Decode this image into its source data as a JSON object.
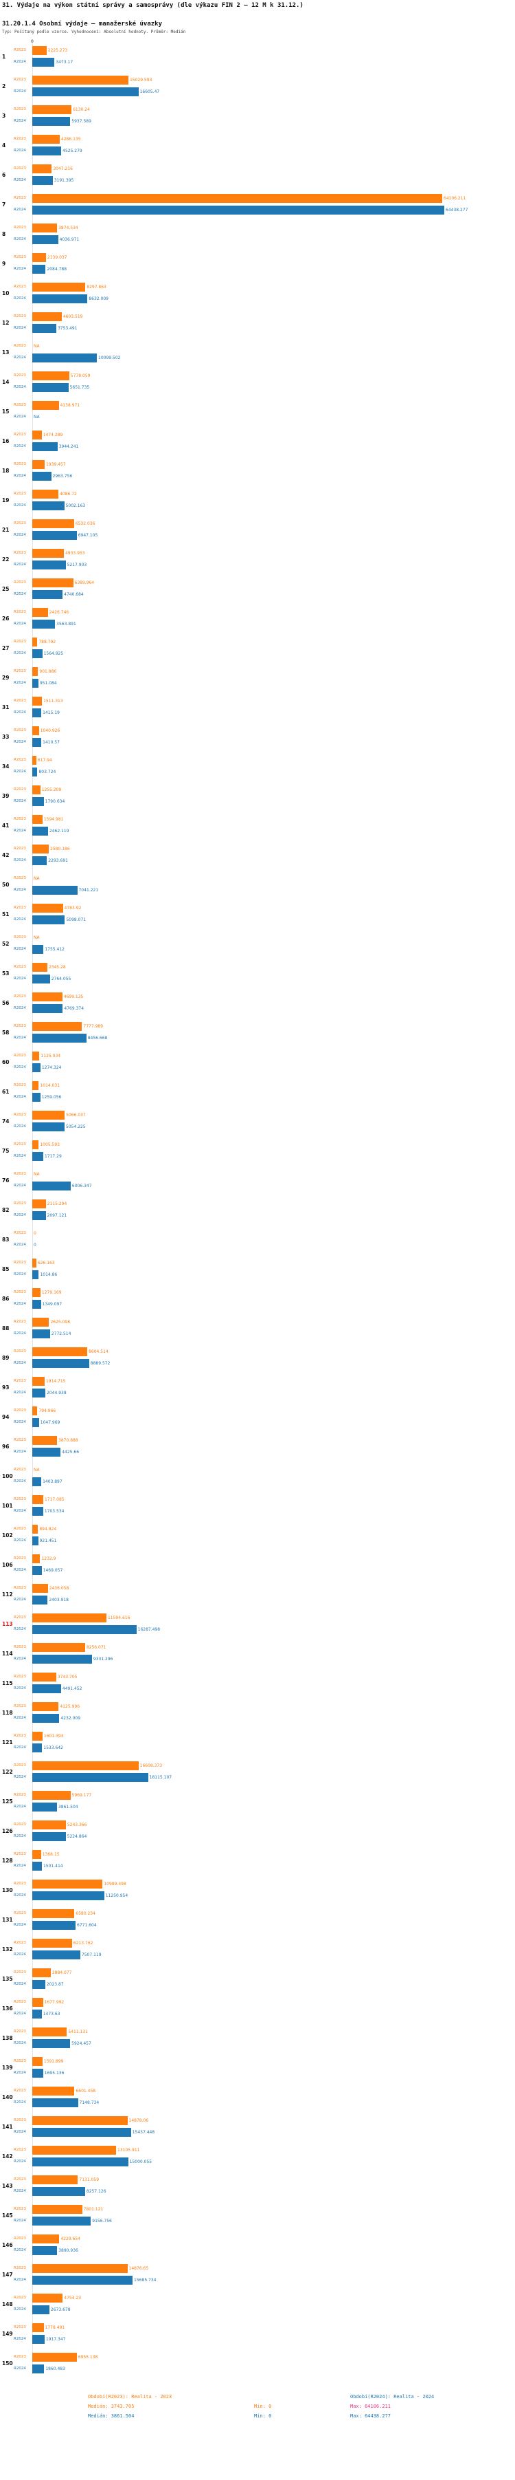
{
  "title": "31. Výdaje na výkon státní správy a samosprávy (dle výkazu FIN 2 – 12 M k 31.12.)",
  "subtitle": "31.20.1.4 Osobní výdaje – manažerské úvazky",
  "meta": "Typ: Počítaný podle vzorce. Vyhodnocení: Absolutní hodnoty. Průměr: Medián",
  "axis": {
    "zero_label": "0"
  },
  "colors": {
    "r2023": "#ff7f0e",
    "r2024": "#1f77b4",
    "highlight_row": "#e02020",
    "max_2023_text": "#e8338a"
  },
  "footer": {
    "legend_2023": "Období(R2023): Realita - 2023",
    "legend_2024": "Období(R2024): Realita - 2024",
    "median_2023": "Medián: 3743.705",
    "median_2024": "Medián: 3861.504",
    "min_2023": "Min: 0",
    "min_2024": "Min: 0",
    "max_2023": "Max: 64106.211",
    "max_2024": "Max: 64438.277"
  },
  "chart_data": {
    "type": "bar",
    "orientation": "horizontal",
    "title": "31. Výdaje na výkon státní správy a samosprávy (dle výkazu FIN 2 – 12 M k 31.12.)",
    "subtitle": "31.20.1.4 Osobní výdaje – manažerské úvazky",
    "series": [
      "R2023",
      "R2024"
    ],
    "legend_position": "bottom",
    "grid": false,
    "xlim": [
      0,
      66000
    ],
    "highlight_row": "113",
    "stats": {
      "R2023": {
        "median": 3743.705,
        "min": 0,
        "max": 64106.211
      },
      "R2024": {
        "median": 3861.504,
        "min": 0,
        "max": 64438.277
      }
    },
    "rows": [
      {
        "id": "1",
        "R2023": 2225.273,
        "R2024": 3473.17
      },
      {
        "id": "2",
        "R2023": 15029.593,
        "R2024": 16605.47
      },
      {
        "id": "3",
        "R2023": 6130.24,
        "R2024": 5937.589
      },
      {
        "id": "4",
        "R2023": 4286.135,
        "R2024": 4525.279
      },
      {
        "id": "6",
        "R2023": 3047.216,
        "R2024": 3191.395
      },
      {
        "id": "7",
        "R2023": 64106.211,
        "R2024": 64438.277
      },
      {
        "id": "8",
        "R2023": 3874.534,
        "R2024": 4036.971
      },
      {
        "id": "9",
        "R2023": 2139.037,
        "R2024": 2084.788
      },
      {
        "id": "10",
        "R2023": 8297.863,
        "R2024": 8632.009
      },
      {
        "id": "12",
        "R2023": 4603.519,
        "R2024": 3753.491
      },
      {
        "id": "13",
        "R2023": null,
        "R2024": 10099.502
      },
      {
        "id": "14",
        "R2023": 5778.059,
        "R2024": 5651.735
      },
      {
        "id": "15",
        "R2023": 4138.971,
        "R2024": null
      },
      {
        "id": "16",
        "R2023": 1474.289,
        "R2024": 3944.241
      },
      {
        "id": "18",
        "R2023": 1939.457,
        "R2024": 2963.756
      },
      {
        "id": "19",
        "R2023": 4086.72,
        "R2024": 5002.163
      },
      {
        "id": "21",
        "R2023": 6532.036,
        "R2024": 6947.105
      },
      {
        "id": "22",
        "R2023": 4933.953,
        "R2024": 5217.903
      },
      {
        "id": "25",
        "R2023": 6389.964,
        "R2024": 4740.684
      },
      {
        "id": "26",
        "R2023": 2426.746,
        "R2024": 3563.891
      },
      {
        "id": "27",
        "R2023": 788.792,
        "R2024": 1564.925
      },
      {
        "id": "29",
        "R2023": 901.886,
        "R2024": 951.084
      },
      {
        "id": "31",
        "R2023": 1511.313,
        "R2024": 1415.19
      },
      {
        "id": "33",
        "R2023": 1040.926,
        "R2024": 1410.57
      },
      {
        "id": "34",
        "R2023": 617.94,
        "R2024": 803.724
      },
      {
        "id": "39",
        "R2023": 1255.209,
        "R2024": 1790.634
      },
      {
        "id": "41",
        "R2023": 1594.981,
        "R2024": 2462.119
      },
      {
        "id": "42",
        "R2023": 2580.186,
        "R2024": 2293.691
      },
      {
        "id": "50",
        "R2023": null,
        "R2024": 7041.221
      },
      {
        "id": "51",
        "R2023": 4783.92,
        "R2024": 5098.071
      },
      {
        "id": "52",
        "R2023": null,
        "R2024": 1755.412
      },
      {
        "id": "53",
        "R2023": 2345.28,
        "R2024": 2764.055
      },
      {
        "id": "56",
        "R2023": 4699.135,
        "R2024": 4769.374
      },
      {
        "id": "58",
        "R2023": 7777.989,
        "R2024": 8456.668
      },
      {
        "id": "60",
        "R2023": 1125.034,
        "R2024": 1274.324
      },
      {
        "id": "61",
        "R2023": 1014.031,
        "R2024": 1259.056
      },
      {
        "id": "74",
        "R2023": 5066.037,
        "R2024": 5054.225
      },
      {
        "id": "75",
        "R2023": 1005.593,
        "R2024": 1717.29
      },
      {
        "id": "76",
        "R2023": null,
        "R2024": 6006.347
      },
      {
        "id": "82",
        "R2023": 2115.294,
        "R2024": 2097.121
      },
      {
        "id": "83",
        "R2023": 0,
        "R2024": 0
      },
      {
        "id": "85",
        "R2023": 626.163,
        "R2024": 1014.86
      },
      {
        "id": "86",
        "R2023": 1279.169,
        "R2024": 1349.097
      },
      {
        "id": "88",
        "R2023": 2625.098,
        "R2024": 2772.514
      },
      {
        "id": "89",
        "R2023": 8604.514,
        "R2024": 8889.572
      },
      {
        "id": "93",
        "R2023": 1914.715,
        "R2024": 2044.938
      },
      {
        "id": "94",
        "R2023": 794.966,
        "R2024": 1047.969
      },
      {
        "id": "96",
        "R2023": 3870.888,
        "R2024": 4425.66
      },
      {
        "id": "100",
        "R2023": null,
        "R2024": 1403.897
      },
      {
        "id": "101",
        "R2023": 1717.085,
        "R2024": 1703.534
      },
      {
        "id": "102",
        "R2023": 894.824,
        "R2024": 921.451
      },
      {
        "id": "106",
        "R2023": 1232.9,
        "R2024": 1469.057
      },
      {
        "id": "112",
        "R2023": 2436.058,
        "R2024": 2403.918
      },
      {
        "id": "113",
        "R2023": 11594.616,
        "R2024": 16287.498
      },
      {
        "id": "114",
        "R2023": 8256.071,
        "R2024": 9331.296
      },
      {
        "id": "115",
        "R2023": 3743.705,
        "R2024": 4491.452
      },
      {
        "id": "118",
        "R2023": 4125.996,
        "R2024": 4232.009
      },
      {
        "id": "121",
        "R2023": 1601.393,
        "R2024": 1533.642
      },
      {
        "id": "122",
        "R2023": 16608.373,
        "R2024": 18115.107
      },
      {
        "id": "125",
        "R2023": 5969.177,
        "R2024": 3861.504
      },
      {
        "id": "126",
        "R2023": 5243.366,
        "R2024": 5224.864
      },
      {
        "id": "128",
        "R2023": 1368.15,
        "R2024": 1501.414
      },
      {
        "id": "130",
        "R2023": 10989.498,
        "R2024": 11250.954
      },
      {
        "id": "131",
        "R2023": 6580.234,
        "R2024": 6771.604
      },
      {
        "id": "132",
        "R2023": 6213.762,
        "R2024": 7507.119
      },
      {
        "id": "135",
        "R2023": 2884.077,
        "R2024": 2023.87
      },
      {
        "id": "136",
        "R2023": 1677.992,
        "R2024": 1473.63
      },
      {
        "id": "138",
        "R2023": 5411.131,
        "R2024": 5924.457
      },
      {
        "id": "139",
        "R2023": 1591.899,
        "R2024": 1695.136
      },
      {
        "id": "140",
        "R2023": 6601.458,
        "R2024": 7148.734
      },
      {
        "id": "141",
        "R2023": 14878.06,
        "R2024": 15437.448
      },
      {
        "id": "142",
        "R2023": 13105.911,
        "R2024": 15000.055
      },
      {
        "id": "143",
        "R2023": 7131.059,
        "R2024": 8257.126
      },
      {
        "id": "145",
        "R2023": 7801.121,
        "R2024": 9156.756
      },
      {
        "id": "146",
        "R2023": 4229.654,
        "R2024": 3890.936
      },
      {
        "id": "147",
        "R2023": 14876.65,
        "R2024": 15685.734
      },
      {
        "id": "148",
        "R2023": 4754.23,
        "R2024": 2673.678
      },
      {
        "id": "149",
        "R2023": 1778.491,
        "R2024": 1917.347
      },
      {
        "id": "150",
        "R2023": 6955.138,
        "R2024": 1860.483
      }
    ]
  }
}
